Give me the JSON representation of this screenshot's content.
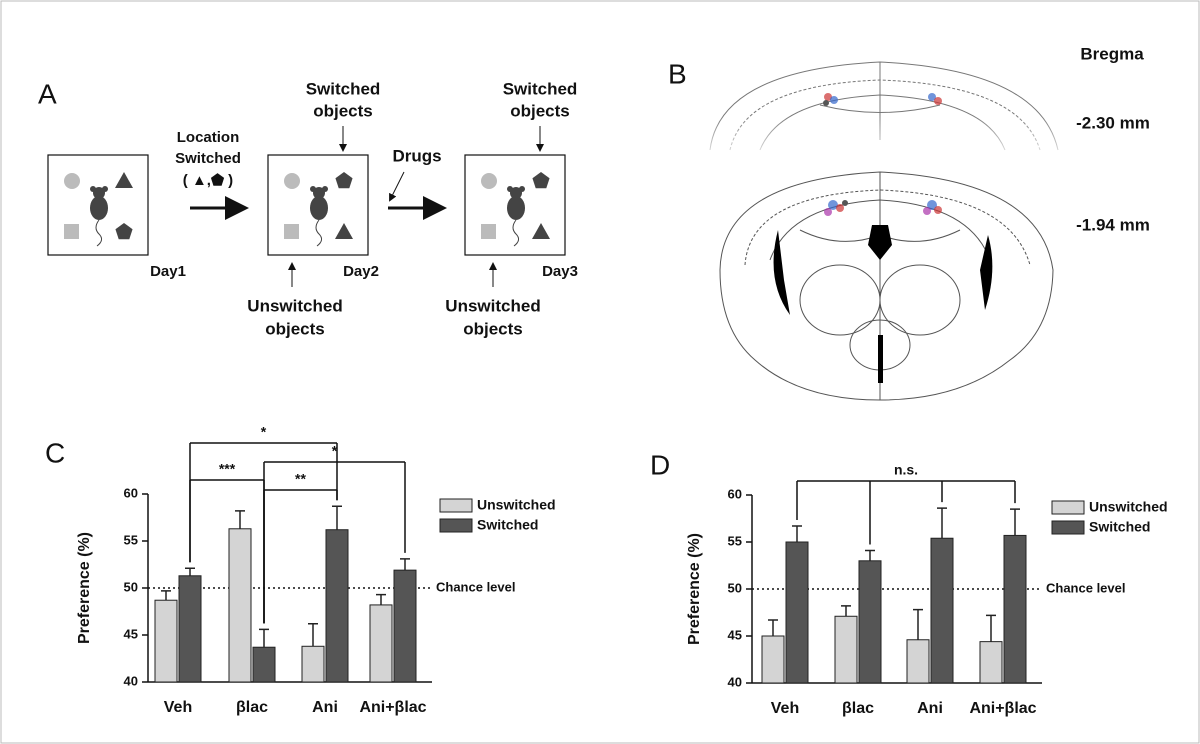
{
  "panel_a": {
    "label": "A",
    "location": "Location",
    "switched": "Switched",
    "location_objects": "( ▲,⬟ )",
    "day1": "Day1",
    "day2": "Day2",
    "day3": "Day3",
    "day2_top": [
      "Switched",
      "objects"
    ],
    "day3_top": [
      "Switched",
      "objects"
    ],
    "drugs": "Drugs",
    "day2_bottom": [
      "Unswitched",
      "objects"
    ],
    "day3_bottom": [
      "Unswitched",
      "objects"
    ]
  },
  "panel_b": {
    "label": "B",
    "bregma": "Bregma",
    "section_1": "-2.30 mm",
    "section_2": "-1.94 mm"
  },
  "chart_data": [
    {
      "panel": "C",
      "type": "bar",
      "categories": [
        "Veh",
        "βlac",
        "Ani",
        "Ani+βlac"
      ],
      "ylabel": "Preference (%)",
      "series": [
        {
          "name": "Unswitched",
          "color": "#d4d4d4",
          "values": [
            48.7,
            56.3,
            43.8,
            48.2
          ],
          "errors": [
            1.0,
            1.9,
            2.4,
            1.1
          ]
        },
        {
          "name": "Switched",
          "color": "#555555",
          "values": [
            51.3,
            43.7,
            56.2,
            51.9
          ],
          "errors": [
            0.8,
            1.9,
            2.5,
            1.2
          ]
        }
      ],
      "ylim": [
        40,
        60
      ],
      "yticks": [
        40,
        45,
        50,
        55,
        60
      ],
      "reference_line": {
        "value": 50,
        "label": "Chance level"
      },
      "annotations": [
        {
          "text": "*"
        },
        {
          "text": "***"
        },
        {
          "text": "**"
        },
        {
          "text": "*"
        }
      ]
    },
    {
      "panel": "D",
      "type": "bar",
      "categories": [
        "Veh",
        "βlac",
        "Ani",
        "Ani+βlac"
      ],
      "ylabel": "Preference (%)",
      "series": [
        {
          "name": "Unswitched",
          "color": "#d4d4d4",
          "values": [
            45.0,
            47.1,
            44.6,
            44.4
          ],
          "errors": [
            1.7,
            1.1,
            3.2,
            2.8
          ]
        },
        {
          "name": "Switched",
          "color": "#555555",
          "values": [
            55.0,
            53.0,
            55.4,
            55.7
          ],
          "errors": [
            1.7,
            1.1,
            3.2,
            2.8
          ]
        }
      ],
      "ylim": [
        40,
        60
      ],
      "yticks": [
        40,
        45,
        50,
        55,
        60
      ],
      "reference_line": {
        "value": 50,
        "label": "Chance level"
      },
      "annotations": [
        {
          "text": "n.s."
        }
      ]
    }
  ]
}
